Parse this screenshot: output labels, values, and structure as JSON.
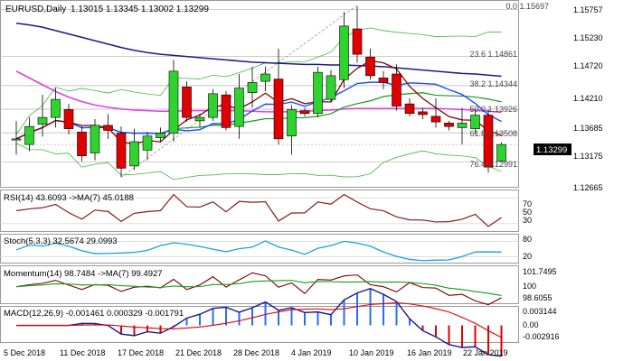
{
  "header": {
    "symbol": "EURUSD,Daily",
    "ohlc": "1.13015 1.13345 1.13002 1.13299"
  },
  "price_axis": {
    "ticks": [
      "1.15757",
      "1.15230",
      "1.14720",
      "1.14210",
      "1.13685",
      "1.13175",
      "1.12665"
    ],
    "current_price": "1.13299",
    "current_color": "#000000"
  },
  "fib_levels": [
    {
      "label": "0.0 1.15697",
      "price": 1.15697
    },
    {
      "label": "23.6 1.14861",
      "price": 1.14861
    },
    {
      "label": "38.2 1.14344",
      "price": 1.14344
    },
    {
      "label": "50.0 1.13926",
      "price": 1.13926
    },
    {
      "label": "61.8 1.13508",
      "price": 1.13508
    },
    {
      "label": "76.4 1.12991",
      "price": 1.12991
    }
  ],
  "rsi_panel": {
    "label": "RSI(14) 43.6093 ->MA(7) 45.0188",
    "ticks": [
      "70",
      "50",
      "30"
    ]
  },
  "stoch_panel": {
    "label": "Stoch(5,3,3) 32.5674 29.0993",
    "ticks": [
      "80",
      "20"
    ]
  },
  "momentum_panel": {
    "label": "Momentum(14) 98.7484 ->MA(7) 99.4927",
    "ticks": [
      "101.7495",
      "100",
      "98.6055"
    ]
  },
  "macd_panel": {
    "label": "MACD(12,26,9) -0.001461 0.000329 -0.001791",
    "ticks": [
      "0.003144",
      "0.00",
      "-0.002916"
    ]
  },
  "x_axis": {
    "dates": [
      "5 Dec 2018",
      "11 Dec 2018",
      "17 Dec 2018",
      "21 Dec 2018",
      "28 Dec 2018",
      "4 Jan 2019",
      "10 Jan 2019",
      "16 Jan 2019",
      "22 Jan 2019"
    ]
  },
  "colors": {
    "bull": "#2fd32f",
    "bear": "#e00000",
    "upper_outline": "#000000",
    "ma_navy": "#1a1a8c",
    "ma_magenta": "#e040e0",
    "ma_blue": "#1e4bff",
    "ma_darkred": "#8b0000",
    "ma_green": "#1a9a1a",
    "band": "#3db83d",
    "grid": "#cfcfcf",
    "rsi": "#8b1a1a",
    "stoch": "#1fa0d8",
    "momentum": "#7a0000",
    "macd_hist": "#2a6bff"
  },
  "chart_data": {
    "type": "candlestick",
    "ylim": [
      1.1255,
      1.1583
    ],
    "candles": [
      {
        "o": 1.1338,
        "h": 1.1372,
        "l": 1.1312,
        "c": 1.134
      },
      {
        "o": 1.133,
        "h": 1.1378,
        "l": 1.1318,
        "c": 1.1362
      },
      {
        "o": 1.1366,
        "h": 1.1418,
        "l": 1.1344,
        "c": 1.1378
      },
      {
        "o": 1.1378,
        "h": 1.143,
        "l": 1.136,
        "c": 1.141
      },
      {
        "o": 1.1392,
        "h": 1.1402,
        "l": 1.1348,
        "c": 1.1358
      },
      {
        "o": 1.1352,
        "h": 1.1362,
        "l": 1.13,
        "c": 1.131
      },
      {
        "o": 1.1315,
        "h": 1.1375,
        "l": 1.1302,
        "c": 1.1364
      },
      {
        "o": 1.1364,
        "h": 1.1384,
        "l": 1.134,
        "c": 1.1355
      },
      {
        "o": 1.135,
        "h": 1.1362,
        "l": 1.1272,
        "c": 1.1288
      },
      {
        "o": 1.1292,
        "h": 1.1358,
        "l": 1.1285,
        "c": 1.1335
      },
      {
        "o": 1.132,
        "h": 1.1352,
        "l": 1.1302,
        "c": 1.1345
      },
      {
        "o": 1.1342,
        "h": 1.136,
        "l": 1.1335,
        "c": 1.135
      },
      {
        "o": 1.135,
        "h": 1.148,
        "l": 1.1335,
        "c": 1.146
      },
      {
        "o": 1.1432,
        "h": 1.1442,
        "l": 1.137,
        "c": 1.1378
      },
      {
        "o": 1.1372,
        "h": 1.1385,
        "l": 1.136,
        "c": 1.1378
      },
      {
        "o": 1.1378,
        "h": 1.1428,
        "l": 1.1372,
        "c": 1.142
      },
      {
        "o": 1.1418,
        "h": 1.1425,
        "l": 1.1355,
        "c": 1.136
      },
      {
        "o": 1.1362,
        "h": 1.1455,
        "l": 1.134,
        "c": 1.143
      },
      {
        "o": 1.1422,
        "h": 1.1468,
        "l": 1.1395,
        "c": 1.144
      },
      {
        "o": 1.1442,
        "h": 1.1468,
        "l": 1.1425,
        "c": 1.1455
      },
      {
        "o": 1.1446,
        "h": 1.15,
        "l": 1.133,
        "c": 1.134
      },
      {
        "o": 1.1345,
        "h": 1.14,
        "l": 1.1312,
        "c": 1.1392
      },
      {
        "o": 1.139,
        "h": 1.1395,
        "l": 1.138,
        "c": 1.1385
      },
      {
        "o": 1.1385,
        "h": 1.1468,
        "l": 1.1378,
        "c": 1.1458
      },
      {
        "o": 1.141,
        "h": 1.1462,
        "l": 1.1405,
        "c": 1.1452
      },
      {
        "o": 1.1445,
        "h": 1.1565,
        "l": 1.143,
        "c": 1.154
      },
      {
        "o": 1.1535,
        "h": 1.1575,
        "l": 1.1475,
        "c": 1.149
      },
      {
        "o": 1.1485,
        "h": 1.15,
        "l": 1.1445,
        "c": 1.1452
      },
      {
        "o": 1.1448,
        "h": 1.146,
        "l": 1.1428,
        "c": 1.144
      },
      {
        "o": 1.1455,
        "h": 1.1472,
        "l": 1.139,
        "c": 1.1398
      },
      {
        "o": 1.1402,
        "h": 1.1412,
        "l": 1.138,
        "c": 1.1385
      },
      {
        "o": 1.1388,
        "h": 1.1395,
        "l": 1.1375,
        "c": 1.1383
      },
      {
        "o": 1.138,
        "h": 1.1412,
        "l": 1.136,
        "c": 1.137
      },
      {
        "o": 1.1368,
        "h": 1.1372,
        "l": 1.1355,
        "c": 1.1362
      },
      {
        "o": 1.136,
        "h": 1.1395,
        "l": 1.133,
        "c": 1.1368
      },
      {
        "o": 1.1358,
        "h": 1.1392,
        "l": 1.1348,
        "c": 1.1382
      },
      {
        "o": 1.1382,
        "h": 1.1392,
        "l": 1.128,
        "c": 1.129
      },
      {
        "o": 1.1301,
        "h": 1.1334,
        "l": 1.13,
        "c": 1.133
      }
    ],
    "x_label_at": [
      0,
      4,
      8,
      12,
      16,
      20,
      24,
      28,
      32
    ]
  }
}
